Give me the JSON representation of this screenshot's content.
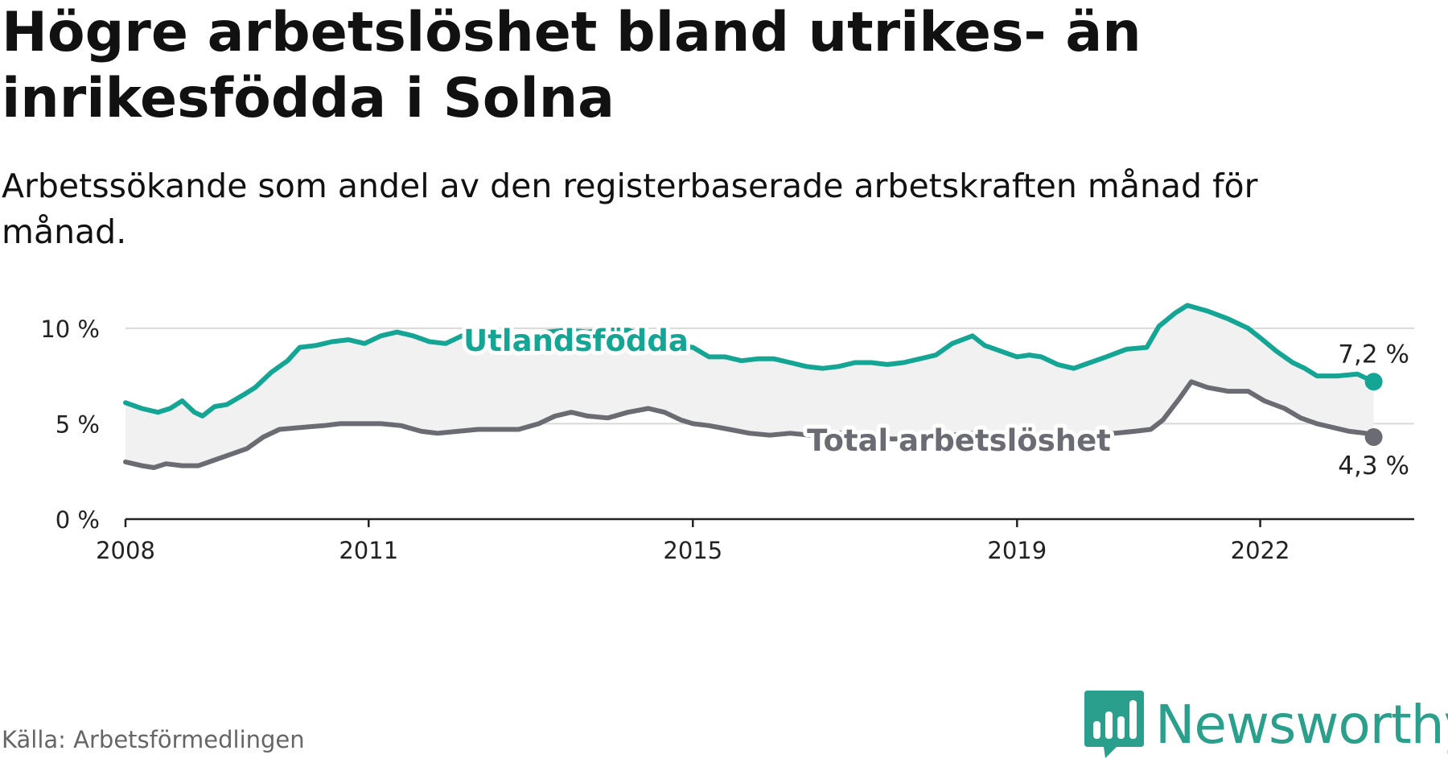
{
  "title": "Högre arbetslöshet bland utrikes- än inrikesfödda i Solna",
  "subtitle": "Arbetssökande som andel av den registerbaserade arbetskraften månad för månad.",
  "source": "Källa: Arbetsförmedlingen",
  "brand": {
    "name": "Newsworthy",
    "icon": "bar-chart-badge-icon"
  },
  "colors": {
    "foreign": "#14a595",
    "total": "#6b6b73",
    "band": "#f1f1f1",
    "grid": "#d9d9d9",
    "axis": "#222222",
    "brand": "#2aa08c"
  },
  "chart_data": {
    "type": "line",
    "title": "Högre arbetslöshet bland utrikes- än inrikesfödda i Solna",
    "xlabel": "",
    "ylabel": "",
    "xlim": [
      2008.0,
      2023.9
    ],
    "ylim": [
      0,
      10.5
    ],
    "yticks": [
      {
        "value": 0,
        "label": "0 %"
      },
      {
        "value": 5,
        "label": "5 %"
      },
      {
        "value": 10,
        "label": "10 %"
      }
    ],
    "xticks": [
      {
        "value": 2008,
        "label": "2008"
      },
      {
        "value": 2011,
        "label": "2011"
      },
      {
        "value": 2015,
        "label": "2015"
      },
      {
        "value": 2019,
        "label": "2019"
      },
      {
        "value": 2022,
        "label": "2022"
      }
    ],
    "grid": true,
    "shaded_band_between_series": true,
    "series": [
      {
        "name": "Utlandsfödda",
        "label": "Utlandsfödda",
        "end_label": "7,2 %",
        "points": [
          [
            2008.0,
            6.1
          ],
          [
            2008.2,
            5.8
          ],
          [
            2008.4,
            5.6
          ],
          [
            2008.55,
            5.8
          ],
          [
            2008.7,
            6.2
          ],
          [
            2008.85,
            5.6
          ],
          [
            2008.95,
            5.4
          ],
          [
            2009.1,
            5.9
          ],
          [
            2009.25,
            6.0
          ],
          [
            2009.45,
            6.5
          ],
          [
            2009.6,
            6.9
          ],
          [
            2009.8,
            7.7
          ],
          [
            2010.0,
            8.3
          ],
          [
            2010.15,
            9.0
          ],
          [
            2010.35,
            9.1
          ],
          [
            2010.55,
            9.3
          ],
          [
            2010.75,
            9.4
          ],
          [
            2010.95,
            9.2
          ],
          [
            2011.15,
            9.6
          ],
          [
            2011.35,
            9.8
          ],
          [
            2011.55,
            9.6
          ],
          [
            2011.75,
            9.3
          ],
          [
            2011.95,
            9.2
          ],
          [
            2012.15,
            9.6
          ],
          [
            2012.35,
            9.5
          ],
          [
            2012.55,
            9.6
          ],
          [
            2012.75,
            9.4
          ],
          [
            2012.95,
            9.6
          ],
          [
            2013.2,
            9.8
          ],
          [
            2013.45,
            9.9
          ],
          [
            2013.7,
            9.8
          ],
          [
            2013.95,
            9.9
          ],
          [
            2014.2,
            9.9
          ],
          [
            2014.4,
            9.6
          ],
          [
            2014.6,
            9.3
          ],
          [
            2014.8,
            9.1
          ],
          [
            2015.0,
            9.0
          ],
          [
            2015.2,
            8.5
          ],
          [
            2015.4,
            8.5
          ],
          [
            2015.6,
            8.3
          ],
          [
            2015.8,
            8.4
          ],
          [
            2016.0,
            8.4
          ],
          [
            2016.2,
            8.2
          ],
          [
            2016.4,
            8.0
          ],
          [
            2016.6,
            7.9
          ],
          [
            2016.8,
            8.0
          ],
          [
            2017.0,
            8.2
          ],
          [
            2017.2,
            8.2
          ],
          [
            2017.4,
            8.1
          ],
          [
            2017.6,
            8.2
          ],
          [
            2017.8,
            8.4
          ],
          [
            2018.0,
            8.6
          ],
          [
            2018.2,
            9.2
          ],
          [
            2018.45,
            9.6
          ],
          [
            2018.6,
            9.1
          ],
          [
            2018.8,
            8.8
          ],
          [
            2019.0,
            8.5
          ],
          [
            2019.15,
            8.6
          ],
          [
            2019.3,
            8.5
          ],
          [
            2019.5,
            8.1
          ],
          [
            2019.7,
            7.9
          ],
          [
            2019.9,
            8.2
          ],
          [
            2020.1,
            8.5
          ],
          [
            2020.35,
            8.9
          ],
          [
            2020.6,
            9.0
          ],
          [
            2020.75,
            10.1
          ],
          [
            2020.95,
            10.8
          ],
          [
            2021.1,
            11.2
          ],
          [
            2021.35,
            10.9
          ],
          [
            2021.6,
            10.5
          ],
          [
            2021.85,
            10.0
          ],
          [
            2022.0,
            9.5
          ],
          [
            2022.2,
            8.8
          ],
          [
            2022.4,
            8.2
          ],
          [
            2022.55,
            7.9
          ],
          [
            2022.7,
            7.5
          ],
          [
            2022.95,
            7.5
          ],
          [
            2023.2,
            7.6
          ],
          [
            2023.4,
            7.2
          ]
        ]
      },
      {
        "name": "Total arbetslöshet",
        "label": "Total arbetslöshet",
        "end_label": "4,3 %",
        "points": [
          [
            2008.0,
            3.0
          ],
          [
            2008.2,
            2.8
          ],
          [
            2008.35,
            2.7
          ],
          [
            2008.5,
            2.9
          ],
          [
            2008.7,
            2.8
          ],
          [
            2008.9,
            2.8
          ],
          [
            2009.1,
            3.1
          ],
          [
            2009.3,
            3.4
          ],
          [
            2009.5,
            3.7
          ],
          [
            2009.7,
            4.3
          ],
          [
            2009.9,
            4.7
          ],
          [
            2010.15,
            4.8
          ],
          [
            2010.45,
            4.9
          ],
          [
            2010.65,
            5.0
          ],
          [
            2010.9,
            5.0
          ],
          [
            2011.15,
            5.0
          ],
          [
            2011.4,
            4.9
          ],
          [
            2011.65,
            4.6
          ],
          [
            2011.85,
            4.5
          ],
          [
            2012.1,
            4.6
          ],
          [
            2012.35,
            4.7
          ],
          [
            2012.6,
            4.7
          ],
          [
            2012.85,
            4.7
          ],
          [
            2013.1,
            5.0
          ],
          [
            2013.3,
            5.4
          ],
          [
            2013.5,
            5.6
          ],
          [
            2013.7,
            5.4
          ],
          [
            2013.95,
            5.3
          ],
          [
            2014.2,
            5.6
          ],
          [
            2014.45,
            5.8
          ],
          [
            2014.65,
            5.6
          ],
          [
            2014.85,
            5.2
          ],
          [
            2015.0,
            5.0
          ],
          [
            2015.2,
            4.9
          ],
          [
            2015.45,
            4.7
          ],
          [
            2015.7,
            4.5
          ],
          [
            2015.95,
            4.4
          ],
          [
            2016.2,
            4.5
          ],
          [
            2016.45,
            4.4
          ],
          [
            2016.7,
            4.5
          ],
          [
            2016.95,
            4.5
          ],
          [
            2017.2,
            4.3
          ],
          [
            2017.45,
            4.2
          ],
          [
            2017.7,
            4.2
          ],
          [
            2017.95,
            4.3
          ],
          [
            2018.2,
            4.4
          ],
          [
            2018.45,
            4.5
          ],
          [
            2018.7,
            4.4
          ],
          [
            2018.95,
            4.3
          ],
          [
            2019.2,
            4.3
          ],
          [
            2019.45,
            4.2
          ],
          [
            2019.7,
            4.3
          ],
          [
            2019.95,
            4.4
          ],
          [
            2020.2,
            4.5
          ],
          [
            2020.45,
            4.6
          ],
          [
            2020.65,
            4.7
          ],
          [
            2020.8,
            5.2
          ],
          [
            2021.0,
            6.3
          ],
          [
            2021.15,
            7.2
          ],
          [
            2021.35,
            6.9
          ],
          [
            2021.6,
            6.7
          ],
          [
            2021.85,
            6.7
          ],
          [
            2022.05,
            6.2
          ],
          [
            2022.3,
            5.8
          ],
          [
            2022.5,
            5.3
          ],
          [
            2022.7,
            5.0
          ],
          [
            2022.9,
            4.8
          ],
          [
            2023.1,
            4.6
          ],
          [
            2023.3,
            4.5
          ],
          [
            2023.4,
            4.3
          ]
        ]
      }
    ]
  }
}
